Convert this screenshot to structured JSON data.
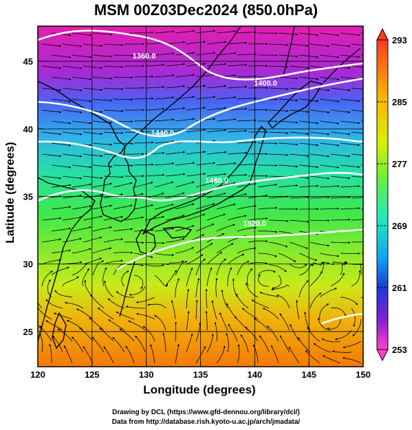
{
  "title": "MSM 00Z03Dec2024 (850.0hPa)",
  "axes": {
    "xlabel": "Longitude (degrees)",
    "ylabel": "Latitude  (degrees)"
  },
  "credits": {
    "line1": "Drawing by DCL (https://www.gfd-dennou.org/library/dcl/)",
    "line2": "Data from http://database.rish.kyoto-u.ac.jp/arch/jmadata/"
  },
  "chart_data": {
    "type": "heatmap",
    "x_range": [
      120,
      150
    ],
    "y_range": [
      22.4,
      47.6
    ],
    "x_ticks": [
      "120",
      "125",
      "130",
      "135",
      "140",
      "145",
      "150"
    ],
    "y_ticks": [
      "25",
      "30",
      "35",
      "40",
      "45"
    ],
    "grid": true,
    "colorbar": {
      "ticks": [
        "293",
        "285",
        "277",
        "269",
        "261",
        "253"
      ],
      "range": [
        253,
        293
      ]
    },
    "contours": [
      {
        "label": "1360.0",
        "label_lon": 129.8,
        "label_lat": 45.2
      },
      {
        "label": "1400.0",
        "label_lon": 141.0,
        "label_lat": 43.2
      },
      {
        "label": "1440.0",
        "label_lon": 131.5,
        "label_lat": 39.5
      },
      {
        "label": "1480.0",
        "label_lon": 136.5,
        "label_lat": 36.0
      },
      {
        "label": "1520.0",
        "label_lon": 140.0,
        "label_lat": 32.8
      }
    ]
  },
  "colors": {
    "contour": "#ffffff",
    "background": "#ffffff",
    "coast": "#000000"
  }
}
